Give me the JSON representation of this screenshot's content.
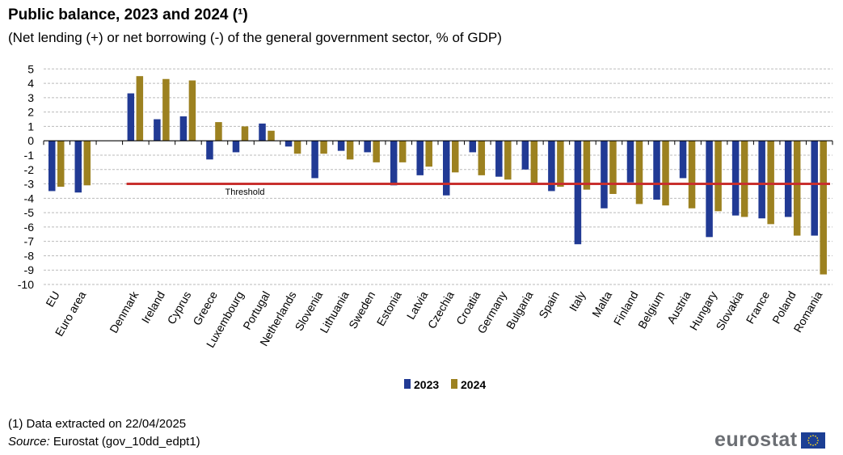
{
  "header": {
    "title": "Public balance, 2023 and 2024 (¹)",
    "subtitle": "(Net lending  (+) or net borrowing  (-) of the general government  sector, % of GDP)"
  },
  "footer": {
    "note": "(1) Data extracted  on 22/04/2025",
    "source_label": "Source:",
    "source_text": " Eurostat (gov_10dd_edpt1)",
    "logo": "eurostat"
  },
  "colors": {
    "2023": "#213a94",
    "2024": "#9c8120",
    "threshold": "#c8302e",
    "grid": "#bbbbbb"
  },
  "chart_data": {
    "type": "bar",
    "title": "Public balance, 2023 and 2024 (¹)",
    "ylim": [
      -10,
      5
    ],
    "yticks": [
      5,
      4,
      3,
      2,
      1,
      0,
      -1,
      -2,
      -3,
      -4,
      -5,
      -6,
      -7,
      -8,
      -9,
      -10
    ],
    "grid": true,
    "legend": "bottom-center",
    "categories": [
      "EU",
      "Euro area",
      "",
      "Denmark",
      "Ireland",
      "Cyprus",
      "Greece",
      "Luxembourg",
      "Portugal",
      "Netherlands",
      "Slovenia",
      "Lithuania",
      "Sweden",
      "Estonia",
      "Latvia",
      "Czechia",
      "Croatia",
      "Germany",
      "Bulgaria",
      "Spain",
      "Italy",
      "Malta",
      "Finland",
      "Belgium",
      "Austria",
      "Hungary",
      "Slovakia",
      "France",
      "Poland",
      "Romania"
    ],
    "series": [
      {
        "name": "2023",
        "values": [
          -3.5,
          -3.6,
          null,
          3.3,
          1.5,
          1.7,
          -1.3,
          -0.8,
          1.2,
          -0.4,
          -2.6,
          -0.7,
          -0.8,
          -3.1,
          -2.4,
          -3.8,
          -0.8,
          -2.5,
          -2.0,
          -3.5,
          -7.2,
          -4.7,
          -2.9,
          -4.1,
          -2.6,
          -6.7,
          -5.2,
          -5.4,
          -5.3,
          -6.6
        ]
      },
      {
        "name": "2024",
        "values": [
          -3.2,
          -3.1,
          null,
          4.5,
          4.3,
          4.2,
          1.3,
          1.0,
          0.7,
          -0.9,
          -0.9,
          -1.3,
          -1.5,
          -1.5,
          -1.8,
          -2.2,
          -2.4,
          -2.7,
          -3.0,
          -3.2,
          -3.4,
          -3.7,
          -4.4,
          -4.5,
          -4.7,
          -4.9,
          -5.3,
          -5.8,
          -6.6,
          -9.3
        ]
      }
    ],
    "threshold": {
      "label": "Threshold",
      "value": -3,
      "from": "Denmark",
      "to": "Romania"
    }
  }
}
